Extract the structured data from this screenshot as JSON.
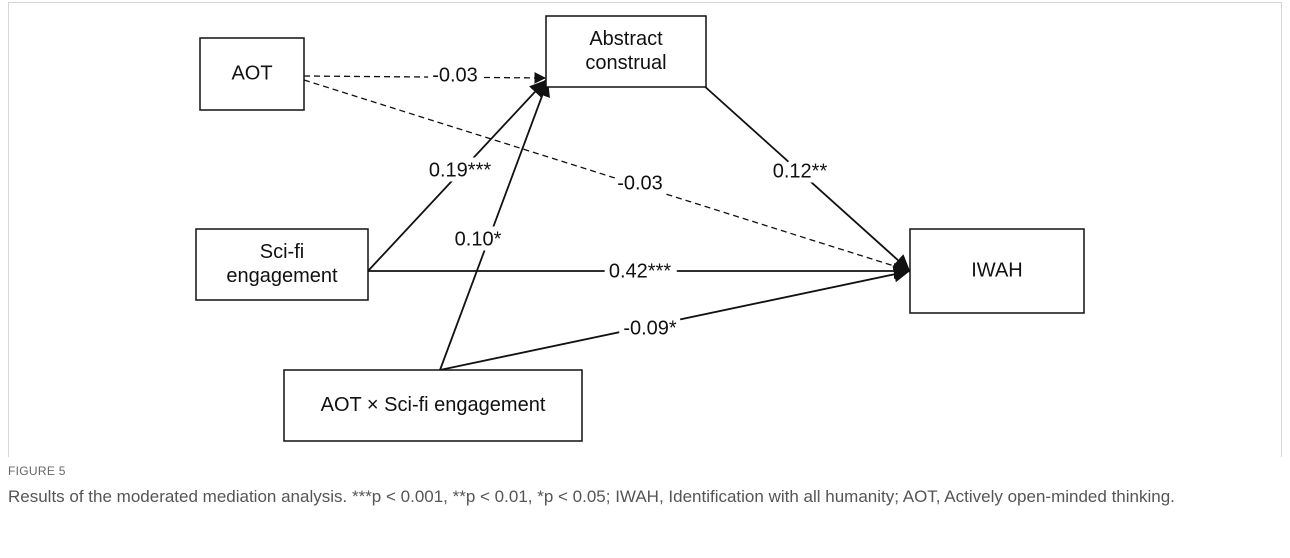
{
  "nodes": [
    {
      "label": [
        "AOT"
      ]
    },
    {
      "label": [
        "Abstract",
        "construal"
      ]
    },
    {
      "label": [
        "Sci-fi",
        "engagement"
      ]
    },
    {
      "label": [
        "IWAH"
      ]
    },
    {
      "label": [
        "AOT × Sci-fi engagement"
      ]
    }
  ],
  "edges": [
    {
      "label": "-0.03",
      "style": "dashed"
    },
    {
      "label": "-0.03",
      "style": "dashed"
    },
    {
      "label": "0.12**",
      "style": "solid"
    },
    {
      "label": "0.19***",
      "style": "solid"
    },
    {
      "label": "0.42***",
      "style": "solid"
    },
    {
      "label": "0.10*",
      "style": "solid"
    },
    {
      "label": "-0.09*",
      "style": "solid"
    }
  ],
  "caption": {
    "figure": "FIGURE 5",
    "text": "Results of the moderated mediation analysis. ***p < 0.001, **p < 0.01, *p < 0.05; IWAH, Identification with all humanity; AOT, Actively open-minded thinking."
  }
}
